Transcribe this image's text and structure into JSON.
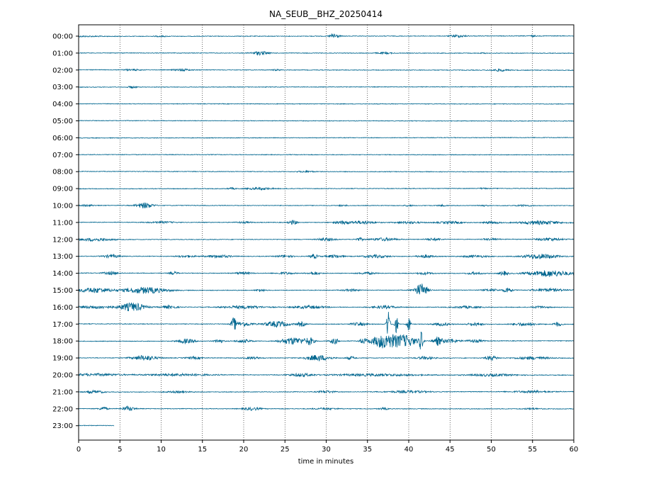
{
  "chart_data": {
    "type": "line",
    "title": "NA_SEUB__BHZ_20250414",
    "xlabel": "time in minutes",
    "ylabel": "",
    "xlim": [
      0,
      60
    ],
    "xticks": [
      "0",
      "5",
      "10",
      "15",
      "20",
      "25",
      "30",
      "35",
      "40",
      "45",
      "50",
      "55",
      "60"
    ],
    "xtick_values": [
      0,
      5,
      10,
      15,
      20,
      25,
      30,
      35,
      40,
      45,
      50,
      55,
      60
    ],
    "grid": "vertical dotted lines at each x tick",
    "trace_color": "#00668f",
    "rows": [
      {
        "label": "00:00",
        "end_min": 60,
        "events": [
          [
            0,
            6,
            0.6
          ],
          [
            10,
            1.5,
            0.6
          ],
          [
            31,
            1,
            4
          ],
          [
            46,
            2,
            1.5
          ],
          [
            55,
            1,
            0.8
          ]
        ]
      },
      {
        "label": "01:00",
        "end_min": 60,
        "events": [
          [
            22,
            2,
            2.5
          ],
          [
            37,
            2,
            1
          ],
          [
            49,
            1,
            0.6
          ]
        ]
      },
      {
        "label": "02:00",
        "end_min": 60,
        "events": [
          [
            6.5,
            2,
            1
          ],
          [
            12.5,
            2,
            1.5
          ],
          [
            24,
            1,
            0.8
          ],
          [
            51,
            2,
            1.5
          ]
        ]
      },
      {
        "label": "03:00",
        "end_min": 60,
        "events": [
          [
            6.5,
            1,
            1.5
          ]
        ]
      },
      {
        "label": "04:00",
        "end_min": 60,
        "events": []
      },
      {
        "label": "05:00",
        "end_min": 60,
        "events": []
      },
      {
        "label": "06:00",
        "end_min": 60,
        "events": []
      },
      {
        "label": "07:00",
        "end_min": 60,
        "events": []
      },
      {
        "label": "08:00",
        "end_min": 60,
        "events": [
          [
            27.5,
            2,
            1
          ]
        ]
      },
      {
        "label": "09:00",
        "end_min": 60,
        "events": [
          [
            18.5,
            1,
            1
          ],
          [
            22,
            3,
            1.5
          ],
          [
            49,
            1,
            0.8
          ]
        ]
      },
      {
        "label": "10:00",
        "end_min": 60,
        "events": [
          [
            1,
            2,
            1
          ],
          [
            8,
            2,
            4
          ],
          [
            32,
            1,
            1
          ],
          [
            40,
            1,
            1
          ],
          [
            44,
            1,
            1
          ],
          [
            49,
            1,
            1
          ],
          [
            54,
            2,
            1
          ]
        ]
      },
      {
        "label": "11:00",
        "end_min": 60,
        "events": [
          [
            10,
            3,
            1.2
          ],
          [
            20,
            2,
            1
          ],
          [
            26,
            1,
            3
          ],
          [
            32,
            2,
            2
          ],
          [
            34.5,
            3,
            2
          ],
          [
            40,
            3,
            1.5
          ],
          [
            45,
            3,
            1.5
          ],
          [
            50,
            2,
            1.5
          ],
          [
            56,
            5,
            2.5
          ]
        ]
      },
      {
        "label": "12:00",
        "end_min": 60,
        "events": [
          [
            2,
            4,
            2
          ],
          [
            30,
            2,
            2
          ],
          [
            34,
            1,
            2
          ],
          [
            37,
            3,
            2
          ],
          [
            43,
            2,
            1.5
          ],
          [
            50,
            2,
            1.2
          ],
          [
            57,
            3,
            2
          ]
        ]
      },
      {
        "label": "13:00",
        "end_min": 60,
        "events": [
          [
            4,
            2,
            2
          ],
          [
            13,
            2,
            1.5
          ],
          [
            17,
            3,
            2
          ],
          [
            25,
            2,
            1.5
          ],
          [
            28.5,
            1,
            3
          ],
          [
            31,
            2,
            2
          ],
          [
            36,
            3,
            2
          ],
          [
            42,
            2,
            2
          ],
          [
            48,
            3,
            1.5
          ],
          [
            56,
            4,
            3.5
          ]
        ]
      },
      {
        "label": "14:00",
        "end_min": 60,
        "events": [
          [
            4,
            2,
            2
          ],
          [
            11.5,
            1,
            2
          ],
          [
            20,
            2,
            1.5
          ],
          [
            25,
            2,
            1.5
          ],
          [
            28.5,
            1.5,
            2
          ],
          [
            35,
            2,
            1.5
          ],
          [
            42,
            2,
            1.5
          ],
          [
            48,
            2,
            1.5
          ],
          [
            51.5,
            1,
            3
          ],
          [
            57,
            5,
            4.5
          ]
        ]
      },
      {
        "label": "15:00",
        "end_min": 60,
        "events": [
          [
            2,
            4,
            3.5
          ],
          [
            8,
            5,
            4.5
          ],
          [
            22,
            1,
            2
          ],
          [
            33,
            2,
            1.5
          ],
          [
            41.5,
            1.5,
            9
          ],
          [
            50,
            2,
            1.5
          ],
          [
            52,
            1,
            4
          ],
          [
            57,
            4,
            2
          ]
        ]
      },
      {
        "label": "16:00",
        "end_min": 60,
        "events": [
          [
            2,
            4,
            2
          ],
          [
            6.5,
            3,
            6
          ],
          [
            11,
            2,
            2
          ],
          [
            20,
            5,
            2
          ],
          [
            28,
            4,
            2
          ],
          [
            37,
            3,
            2
          ],
          [
            47,
            3,
            1.5
          ],
          [
            56,
            2,
            1.5
          ]
        ]
      },
      {
        "label": "17:00",
        "end_min": 60,
        "events": [
          [
            18.8,
            0.6,
            9
          ],
          [
            20,
            2,
            3
          ],
          [
            24,
            3,
            4
          ],
          [
            27,
            1,
            3
          ],
          [
            34,
            2,
            2
          ],
          [
            37.5,
            0.4,
            22
          ],
          [
            38.5,
            0.4,
            12
          ],
          [
            40,
            0.4,
            12
          ],
          [
            44,
            2,
            2
          ],
          [
            48,
            2,
            2
          ],
          [
            54,
            3,
            2
          ],
          [
            58,
            1,
            3
          ]
        ]
      },
      {
        "label": "18:00",
        "end_min": 60,
        "events": [
          [
            13,
            2,
            3
          ],
          [
            17,
            1,
            3
          ],
          [
            20,
            2,
            2
          ],
          [
            26,
            3,
            5
          ],
          [
            28,
            1,
            5
          ],
          [
            31,
            1,
            4
          ],
          [
            34.5,
            1,
            3
          ],
          [
            37,
            3,
            10
          ],
          [
            39.5,
            3,
            8
          ],
          [
            41.5,
            0.4,
            15
          ],
          [
            43.5,
            1,
            6
          ],
          [
            45,
            2,
            3
          ],
          [
            48,
            2,
            2
          ]
        ]
      },
      {
        "label": "19:00",
        "end_min": 60,
        "events": [
          [
            8,
            3,
            3.5
          ],
          [
            14,
            2,
            1.5
          ],
          [
            21,
            2,
            1.5
          ],
          [
            29,
            3,
            4
          ],
          [
            33,
            1,
            2
          ],
          [
            42,
            2,
            2
          ],
          [
            50,
            1.5,
            3
          ],
          [
            55,
            4,
            2
          ]
        ]
      },
      {
        "label": "20:00",
        "end_min": 60,
        "events": [
          [
            2,
            6,
            1.5
          ],
          [
            12,
            8,
            1.5
          ],
          [
            27,
            3,
            2
          ],
          [
            36,
            10,
            1.5
          ],
          [
            50,
            6,
            1.5
          ]
        ]
      },
      {
        "label": "21:00",
        "end_min": 60,
        "events": [
          [
            2,
            2,
            2
          ],
          [
            12,
            3,
            1
          ],
          [
            30,
            2,
            1.5
          ],
          [
            40,
            5,
            1.5
          ],
          [
            55,
            5,
            1.2
          ]
        ]
      },
      {
        "label": "22:00",
        "end_min": 60,
        "events": [
          [
            3,
            1,
            2.5
          ],
          [
            6,
            1.5,
            3
          ],
          [
            21,
            2,
            2
          ],
          [
            30,
            3,
            1
          ],
          [
            37,
            1,
            1.5
          ],
          [
            55,
            2,
            1
          ]
        ]
      },
      {
        "label": "23:00",
        "end_min": 4.3,
        "events": []
      }
    ]
  }
}
